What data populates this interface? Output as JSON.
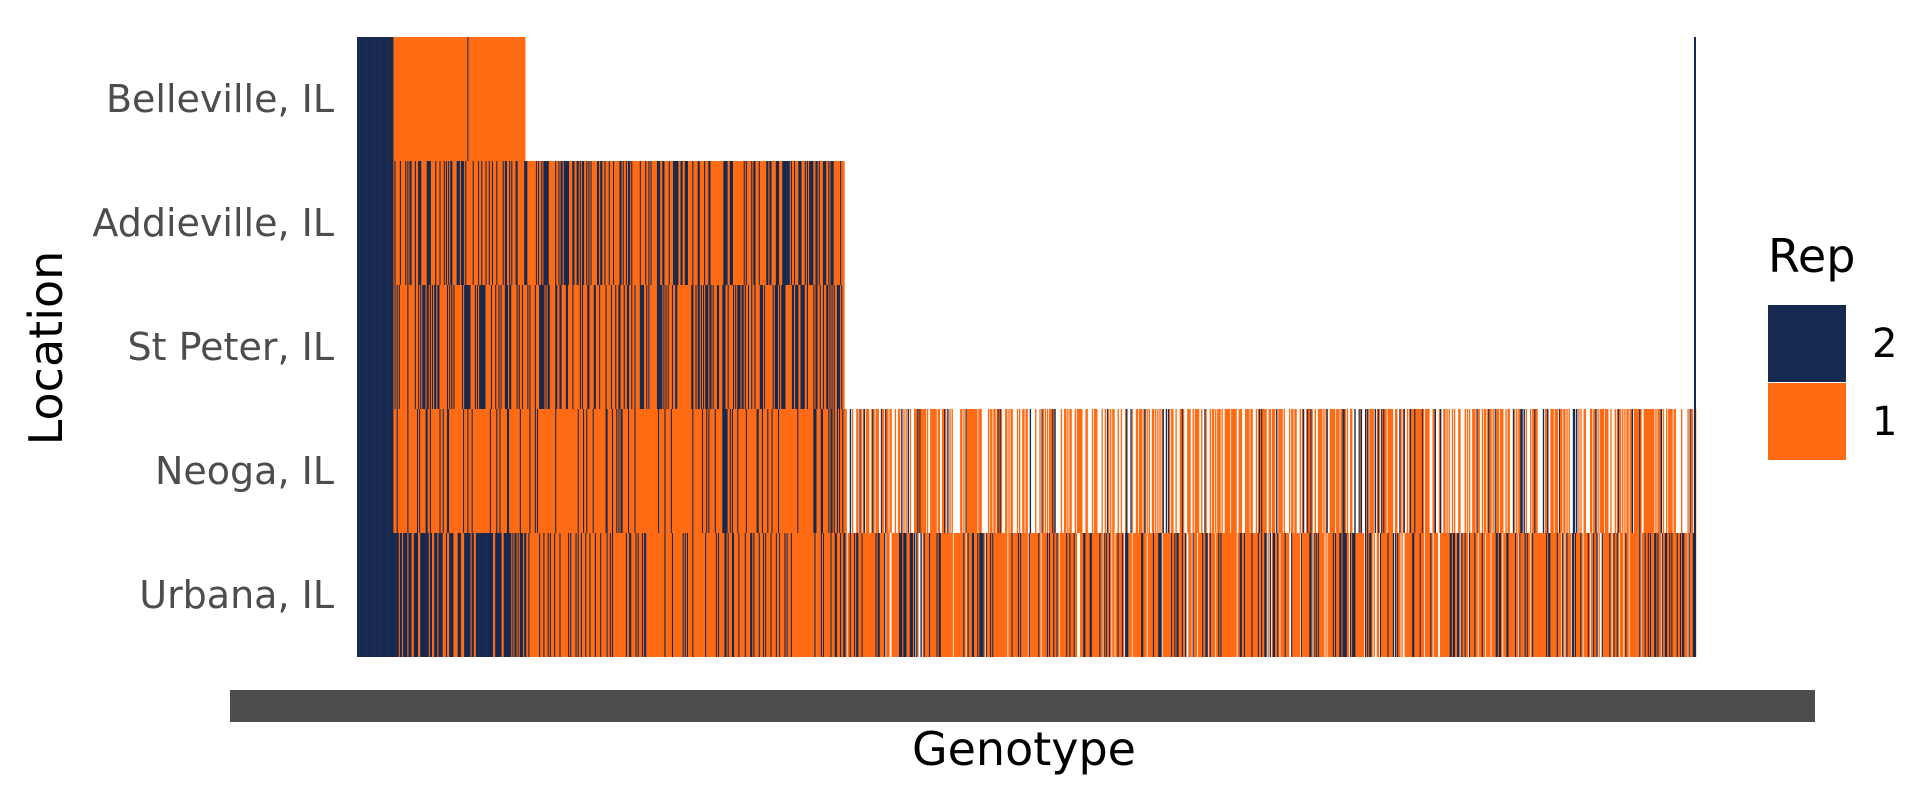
{
  "chart_data": {
    "type": "heatmap",
    "title": "",
    "xlabel": "Genotype",
    "ylabel": "Location",
    "locations": [
      "Belleville, IL",
      "Addieville, IL",
      "St Peter, IL",
      "Neoga, IL",
      "Urbana, IL"
    ],
    "legend": {
      "title": "Rep",
      "placement": "right",
      "entries": [
        {
          "label": "2",
          "color": "#16294f"
        },
        {
          "label": "1",
          "color": "#ff6a13"
        }
      ]
    },
    "genotype_count": 1250,
    "genotype_tick_labels": "overlapping, illegible",
    "coverage": [
      {
        "location": "Belleville, IL",
        "first_genotype": 0,
        "last_genotype": 157,
        "rep2_fraction": 0.22
      },
      {
        "location": "Addieville, IL",
        "first_genotype": 0,
        "last_genotype": 455,
        "rep2_fraction": 0.4
      },
      {
        "location": "St Peter, IL",
        "first_genotype": 0,
        "last_genotype": 455,
        "rep2_fraction": 0.4
      },
      {
        "location": "Neoga, IL",
        "first_genotype": 0,
        "last_genotype": 1250,
        "rep2_fraction": 0.15
      },
      {
        "location": "Urbana, IL",
        "first_genotype": 0,
        "last_genotype": 1250,
        "rep2_fraction": 0.22
      }
    ],
    "colors": {
      "rep2": "#16294f",
      "rep1": "#ff6a13",
      "axis_text": "#4d4d4d",
      "title_text": "#000000"
    }
  }
}
